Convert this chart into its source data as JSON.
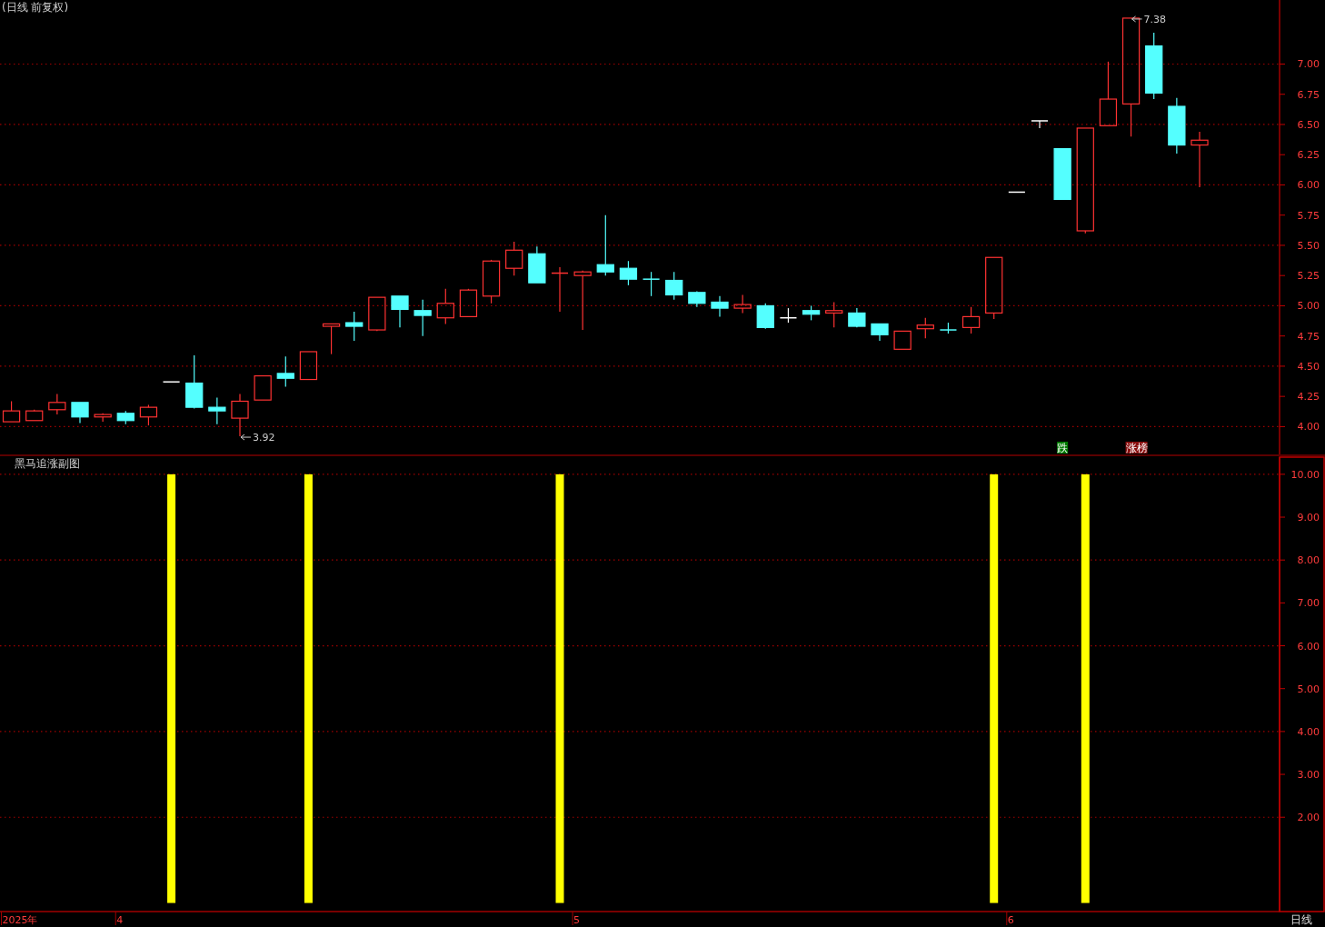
{
  "chart_data": [
    {
      "type": "candlestick",
      "title": "(日线 前复权)",
      "categories": [
        null,
        null,
        null,
        null,
        null,
        null,
        null,
        null,
        null,
        null,
        null,
        null,
        null,
        null,
        null,
        null,
        null,
        null,
        null,
        null,
        null,
        null,
        null,
        null,
        null,
        null,
        null,
        null,
        null,
        null,
        null,
        null,
        null,
        null,
        null,
        null,
        null,
        null,
        null,
        null,
        null,
        null,
        null,
        null,
        null,
        null,
        null,
        null,
        null,
        null,
        null,
        null,
        null,
        null,
        null,
        null
      ],
      "ohlc": [
        [
          4.04,
          4.21,
          4.04,
          4.13
        ],
        [
          4.05,
          4.14,
          4.05,
          4.13
        ],
        [
          4.14,
          4.27,
          4.1,
          4.2
        ],
        [
          4.2,
          4.2,
          4.03,
          4.08
        ],
        [
          4.08,
          4.11,
          4.04,
          4.1
        ],
        [
          4.11,
          4.13,
          4.02,
          4.05
        ],
        [
          4.08,
          4.18,
          4.01,
          4.16
        ],
        [
          4.37,
          4.37,
          4.37,
          4.37
        ],
        [
          4.36,
          4.59,
          4.15,
          4.16
        ],
        [
          4.16,
          4.24,
          4.02,
          4.13
        ],
        [
          4.07,
          4.27,
          3.92,
          4.21
        ],
        [
          4.22,
          4.42,
          4.22,
          4.42
        ],
        [
          4.44,
          4.58,
          4.33,
          4.4
        ],
        [
          4.39,
          4.62,
          4.39,
          4.62
        ],
        [
          4.83,
          4.85,
          4.6,
          4.85
        ],
        [
          4.86,
          4.95,
          4.71,
          4.83
        ],
        [
          4.8,
          5.07,
          4.79,
          5.07
        ],
        [
          5.08,
          5.08,
          4.82,
          4.97
        ],
        [
          4.96,
          5.05,
          4.75,
          4.92
        ],
        [
          4.9,
          5.14,
          4.85,
          5.02
        ],
        [
          4.91,
          5.14,
          4.91,
          5.13
        ],
        [
          5.08,
          5.38,
          5.02,
          5.37
        ],
        [
          5.31,
          5.53,
          5.25,
          5.46
        ],
        [
          5.43,
          5.49,
          5.19,
          5.19
        ],
        [
          5.27,
          5.32,
          4.95,
          5.27
        ],
        [
          5.25,
          5.29,
          4.8,
          5.28
        ],
        [
          5.34,
          5.75,
          5.25,
          5.28
        ],
        [
          5.31,
          5.37,
          5.17,
          5.22
        ],
        [
          5.22,
          5.28,
          5.08,
          5.22
        ],
        [
          5.21,
          5.28,
          5.05,
          5.09
        ],
        [
          5.11,
          5.12,
          4.99,
          5.02
        ],
        [
          5.03,
          5.08,
          4.91,
          4.98
        ],
        [
          4.98,
          5.09,
          4.94,
          5.01
        ],
        [
          5.0,
          5.02,
          4.81,
          4.82
        ],
        [
          4.9,
          4.98,
          4.86,
          4.9
        ],
        [
          4.96,
          5.0,
          4.88,
          4.93
        ],
        [
          4.94,
          5.03,
          4.82,
          4.96
        ],
        [
          4.94,
          4.98,
          4.82,
          4.83
        ],
        [
          4.85,
          4.85,
          4.71,
          4.76
        ],
        [
          4.64,
          4.79,
          4.64,
          4.79
        ],
        [
          4.81,
          4.9,
          4.73,
          4.84
        ],
        [
          4.8,
          4.86,
          4.77,
          4.8
        ],
        [
          4.82,
          4.99,
          4.77,
          4.91
        ],
        [
          4.94,
          5.4,
          4.89,
          5.4
        ],
        [
          5.94,
          5.94,
          5.94,
          5.94
        ],
        [
          6.53,
          6.53,
          6.47,
          6.53
        ],
        [
          6.3,
          6.3,
          5.88,
          5.88
        ],
        [
          5.62,
          6.47,
          5.6,
          6.47
        ],
        [
          6.49,
          7.02,
          6.49,
          6.71
        ],
        [
          6.67,
          7.38,
          6.4,
          7.38
        ],
        [
          7.15,
          7.26,
          6.71,
          6.76
        ],
        [
          6.65,
          6.72,
          6.26,
          6.33
        ],
        [
          6.33,
          6.44,
          5.98,
          6.37
        ],
        null,
        null,
        null
      ],
      "colors": [
        "#ff3232",
        "#ff3232",
        "#ff3232",
        "#54ffff",
        "#ff3232",
        "#54ffff",
        "#ff3232",
        "#ffffff",
        "#54ffff",
        "#54ffff",
        "#ff3232",
        "#ff3232",
        "#54ffff",
        "#ff3232",
        "#ff3232",
        "#54ffff",
        "#ff3232",
        "#54ffff",
        "#54ffff",
        "#ff3232",
        "#ff3232",
        "#ff3232",
        "#ff3232",
        "#54ffff",
        "#ff3232",
        "#ff3232",
        "#54ffff",
        "#54ffff",
        "#54ffff",
        "#54ffff",
        "#54ffff",
        "#54ffff",
        "#ff3232",
        "#54ffff",
        "#ffffff",
        "#54ffff",
        "#ff3232",
        "#54ffff",
        "#54ffff",
        "#ff3232",
        "#ff3232",
        "#54ffff",
        "#ff3232",
        "#ff3232",
        "#ffffff",
        "#ffffff",
        "#54ffff",
        "#ff3232",
        "#ff3232",
        "#ff3232",
        "#54ffff",
        "#54ffff",
        "#ff3232",
        null,
        null,
        null
      ],
      "ylim": [
        3.77,
        7.53
      ],
      "yticks": [
        {
          "value": 4,
          "label": "4.00"
        },
        {
          "value": 4.25,
          "label": "4.25"
        },
        {
          "value": 4.5,
          "label": "4.50"
        },
        {
          "value": 4.75,
          "label": "4.75"
        },
        {
          "value": 5,
          "label": "5.00"
        },
        {
          "value": 5.25,
          "label": "5.25"
        },
        {
          "value": 5.5,
          "label": "5.50"
        },
        {
          "value": 5.75,
          "label": "5.75"
        },
        {
          "value": 6,
          "label": "6.00"
        },
        {
          "value": 6.25,
          "label": "6.25"
        },
        {
          "value": 6.5,
          "label": "6.50"
        },
        {
          "value": 6.75,
          "label": "6.75"
        },
        {
          "value": 7,
          "label": "7.00"
        }
      ],
      "grid": "y",
      "tick_labels": "y",
      "annotations": [
        "7.38",
        "3.92",
        "跌",
        "涨榜"
      ]
    },
    {
      "type": "bar",
      "title": "黑马追涨副图",
      "categories": [
        "2025年",
        null,
        null,
        null,
        null,
        "4",
        null,
        null,
        null,
        null,
        null,
        null,
        null,
        null,
        null,
        null,
        null,
        null,
        null,
        null,
        null,
        null,
        null,
        null,
        null,
        "5",
        null,
        null,
        null,
        null,
        null,
        null,
        null,
        null,
        null,
        null,
        null,
        null,
        null,
        null,
        null,
        null,
        null,
        null,
        "6",
        null,
        null,
        null,
        null,
        null,
        null,
        null,
        null,
        null,
        null,
        null
      ],
      "values": [
        null,
        null,
        null,
        null,
        null,
        null,
        null,
        10,
        null,
        null,
        null,
        null,
        null,
        10,
        null,
        null,
        null,
        null,
        null,
        null,
        null,
        null,
        null,
        null,
        10,
        null,
        null,
        null,
        null,
        null,
        null,
        null,
        null,
        null,
        null,
        null,
        null,
        null,
        null,
        null,
        null,
        null,
        null,
        10,
        null,
        null,
        null,
        10,
        null,
        null,
        null,
        null,
        null,
        null,
        null,
        null
      ],
      "color": "#ffff00",
      "ylim": [
        -0.2,
        10.4
      ],
      "yticks": [
        {
          "value": 2,
          "label": "2.00"
        },
        {
          "value": 3,
          "label": "3.00"
        },
        {
          "value": 4,
          "label": "4.00"
        },
        {
          "value": 5,
          "label": "5.00"
        },
        {
          "value": 6,
          "label": "6.00"
        },
        {
          "value": 7,
          "label": "7.00"
        },
        {
          "value": 8,
          "label": "8.00"
        },
        {
          "value": 9,
          "label": "9.00"
        },
        {
          "value": 10,
          "label": "10.00"
        }
      ],
      "grid": "y",
      "annotations": [
        "日线"
      ]
    }
  ]
}
